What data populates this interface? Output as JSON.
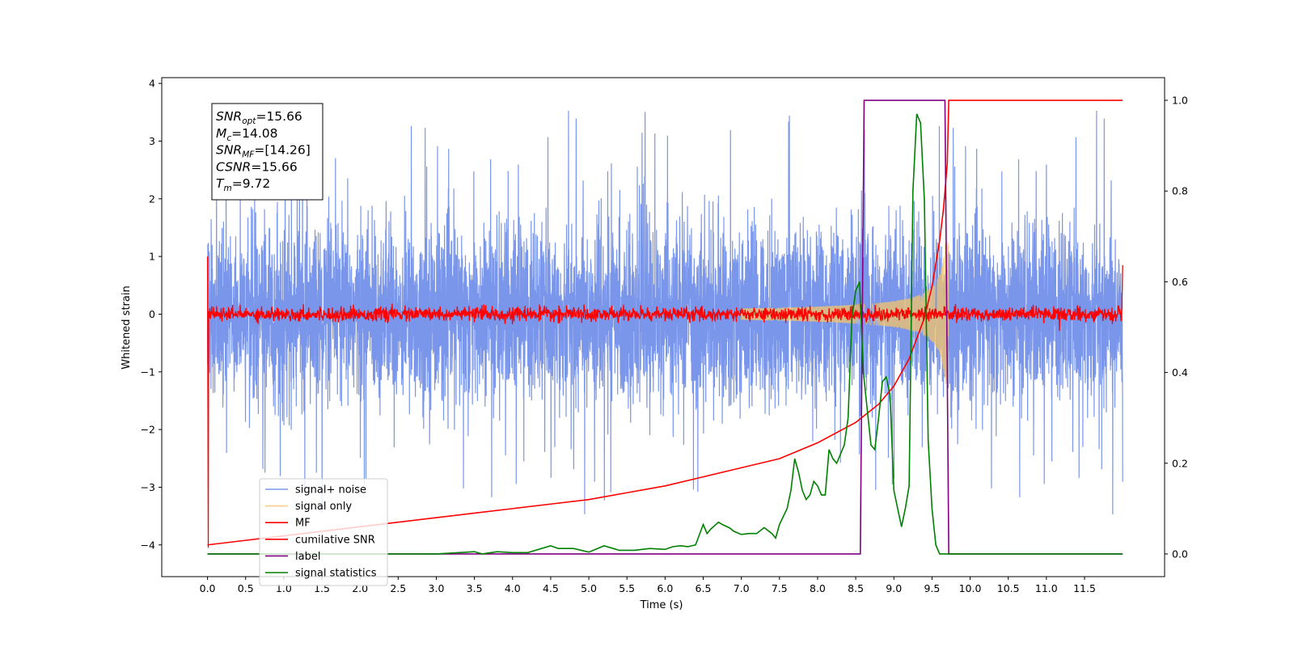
{
  "chart_data": {
    "type": "line",
    "xlabel": "Time (s)",
    "ylabel": "Whitened strain",
    "xlim": [
      -0.6,
      12.55
    ],
    "ylim_left": [
      -4.55,
      4.1
    ],
    "ylim_right": [
      -0.05,
      1.05
    ],
    "x_ticks": [
      0.0,
      0.5,
      1.0,
      1.5,
      2.0,
      2.5,
      3.0,
      3.5,
      4.0,
      4.5,
      5.0,
      5.5,
      6.0,
      6.5,
      7.0,
      7.5,
      8.0,
      8.5,
      9.0,
      9.5,
      10.0,
      10.5,
      11.0,
      11.5
    ],
    "x_tick_labels": [
      "0.0",
      "0.5",
      "1.0",
      "1.5",
      "2.0",
      "2.5",
      "3.0",
      "3.5",
      "4.0",
      "4.5",
      "5.0",
      "5.5",
      "6.0",
      "6.5",
      "7.0",
      "7.5",
      "8.0",
      "8.5",
      "9.0",
      "9.5",
      "10.0",
      "10.5",
      "11.0",
      "11.5"
    ],
    "y_left_ticks": [
      4,
      3,
      2,
      1,
      0,
      -1,
      -2,
      -3,
      -4
    ],
    "y_left_tick_labels": [
      "4",
      "3",
      "2",
      "1",
      "0",
      "−1",
      "−2",
      "−3",
      "−4"
    ],
    "y_right_ticks": [
      1.0,
      0.8,
      0.6,
      0.4,
      0.2,
      0.0
    ],
    "y_right_tick_labels": [
      "1.0",
      "0.8",
      "0.6",
      "0.4",
      "0.2",
      "0.0"
    ],
    "grid": false,
    "legend_position": "lower-left",
    "series": [
      {
        "name": "signal+ noise",
        "color": "#4169e1",
        "axis": "left",
        "style": "noise band, amplitude about ±1.5 with spikes to ±3.7, spanning 0–12.0 s"
      },
      {
        "name": "signal only",
        "color": "#f4c46a",
        "axis": "left",
        "style": "chirp growing from about ±0.1 at 7.0 s to ±1.2 at 9.72 s"
      },
      {
        "name": "MF",
        "color": "#ff0000",
        "axis": "left",
        "style": "noise around 0 with amplitude about ±0.1, edge spikes 1.0 / -4.05"
      },
      {
        "name": "cumilative SNR",
        "color": "#ff0000",
        "axis": "right",
        "x": [
          0.0,
          0.5,
          1.0,
          1.5,
          2.0,
          2.5,
          3.0,
          3.5,
          4.0,
          4.5,
          5.0,
          5.5,
          6.0,
          6.5,
          7.0,
          7.5,
          8.0,
          8.5,
          8.8,
          9.0,
          9.2,
          9.4,
          9.5,
          9.6,
          9.65,
          9.7,
          9.72,
          12.0
        ],
        "y": [
          0.02,
          0.03,
          0.04,
          0.05,
          0.06,
          0.07,
          0.08,
          0.09,
          0.1,
          0.11,
          0.12,
          0.135,
          0.15,
          0.17,
          0.19,
          0.21,
          0.245,
          0.29,
          0.33,
          0.37,
          0.43,
          0.52,
          0.59,
          0.69,
          0.76,
          0.86,
          1.0,
          1.0
        ]
      },
      {
        "name": "label",
        "color": "#800080",
        "axis": "right",
        "x": [
          0.0,
          8.56,
          8.61,
          9.67,
          9.72,
          12.0
        ],
        "y": [
          0.0,
          0.0,
          1.0,
          1.0,
          0.0,
          0.0
        ]
      },
      {
        "name": "signal statistics",
        "color": "#008000",
        "axis": "right",
        "x": [
          0.0,
          0.5,
          1.0,
          1.5,
          2.0,
          2.5,
          3.0,
          3.5,
          3.6,
          3.8,
          4.0,
          4.2,
          4.5,
          4.6,
          4.8,
          5.0,
          5.2,
          5.4,
          5.6,
          5.8,
          6.0,
          6.1,
          6.2,
          6.3,
          6.4,
          6.5,
          6.55,
          6.6,
          6.7,
          6.75,
          6.85,
          6.9,
          7.0,
          7.1,
          7.2,
          7.3,
          7.4,
          7.45,
          7.5,
          7.6,
          7.65,
          7.7,
          7.75,
          7.8,
          7.85,
          7.9,
          7.95,
          8.0,
          8.05,
          8.1,
          8.15,
          8.2,
          8.25,
          8.3,
          8.35,
          8.4,
          8.45,
          8.5,
          8.55,
          8.6,
          8.65,
          8.7,
          8.75,
          8.8,
          8.85,
          8.9,
          8.95,
          9.0,
          9.05,
          9.1,
          9.15,
          9.2,
          9.25,
          9.3,
          9.35,
          9.4,
          9.45,
          9.5,
          9.55,
          9.6,
          9.62,
          9.65,
          9.7,
          9.75,
          9.8,
          9.85,
          12.0
        ],
        "y": [
          0.0,
          0.0,
          0.0,
          0.0,
          0.0,
          0.0,
          0.0,
          0.005,
          0.0,
          0.005,
          0.003,
          0.003,
          0.018,
          0.012,
          0.012,
          0.004,
          0.018,
          0.008,
          0.008,
          0.012,
          0.01,
          0.016,
          0.018,
          0.016,
          0.02,
          0.065,
          0.045,
          0.055,
          0.07,
          0.065,
          0.057,
          0.05,
          0.043,
          0.045,
          0.045,
          0.058,
          0.045,
          0.035,
          0.065,
          0.1,
          0.14,
          0.21,
          0.18,
          0.14,
          0.12,
          0.13,
          0.16,
          0.15,
          0.13,
          0.13,
          0.23,
          0.21,
          0.2,
          0.22,
          0.24,
          0.3,
          0.52,
          0.58,
          0.6,
          0.4,
          0.32,
          0.24,
          0.23,
          0.3,
          0.38,
          0.39,
          0.35,
          0.14,
          0.1,
          0.06,
          0.1,
          0.15,
          0.8,
          0.97,
          0.95,
          0.78,
          0.25,
          0.1,
          0.02,
          0.0,
          0.0,
          0.0,
          0.0,
          0.0,
          0.0,
          0.0,
          0.0
        ]
      }
    ]
  },
  "annotation": {
    "lines": [
      {
        "sym": "SNR",
        "sub": "opt",
        "rest": "=15.66"
      },
      {
        "sym": "M",
        "sub": "c",
        "rest": "=14.08"
      },
      {
        "sym": "SNR",
        "sub": "MF",
        "rest": "=[14.26]"
      },
      {
        "sym": "CSNR",
        "sub": "",
        "rest": "=15.66"
      },
      {
        "sym": "T",
        "sub": "m",
        "rest": "=9.72"
      }
    ]
  },
  "legend": {
    "items": [
      {
        "label": "signal+ noise",
        "color": "#7a95e8"
      },
      {
        "label": "signal only",
        "color": "#f7d08c"
      },
      {
        "label": "MF",
        "color": "#ff0000"
      },
      {
        "label": "cumilative SNR",
        "color": "#ff0000"
      },
      {
        "label": "label",
        "color": "#800080"
      },
      {
        "label": "signal statistics",
        "color": "#008000"
      }
    ]
  }
}
